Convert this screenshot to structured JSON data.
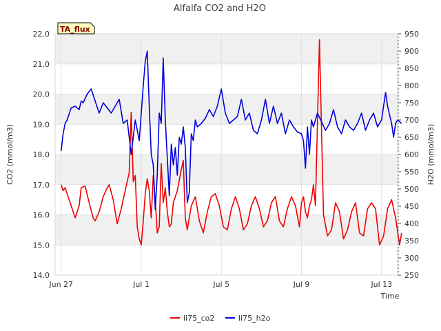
{
  "chart_data": {
    "type": "line",
    "title": "Alfalfa CO2 and H2O",
    "badge": "TA_flux",
    "xlabel": "Time",
    "ylabel_left": "CO2 (mmol/m3)",
    "ylabel_right": "H2O (mmol/m3)",
    "x_unit": "days since Jun 27",
    "xlim": [
      -0.3,
      16.8
    ],
    "ylim_left": [
      14.0,
      22.0
    ],
    "ylim_right": [
      250,
      950
    ],
    "x_ticks": [
      {
        "value": 0,
        "label": "Jun 27"
      },
      {
        "value": 4,
        "label": "Jul 1"
      },
      {
        "value": 8,
        "label": "Jul 5"
      },
      {
        "value": 12,
        "label": "Jul 9"
      },
      {
        "value": 16,
        "label": "Jul 13"
      }
    ],
    "y_ticks_left": [
      "14.0",
      "15.0",
      "16.0",
      "17.0",
      "18.0",
      "19.0",
      "20.0",
      "21.0",
      "22.0"
    ],
    "y_ticks_right": [
      "250",
      "300",
      "350",
      "400",
      "450",
      "500",
      "550",
      "600",
      "650",
      "700",
      "750",
      "800",
      "850",
      "900",
      "950"
    ],
    "grid": true,
    "legend_position": "bottom-center",
    "colors": {
      "li75_co2": "#ee0000",
      "li75_h2o": "#0000dd",
      "band": "#f0f0f0",
      "badge_bg": "#ffffc0"
    },
    "series": [
      {
        "name": "li75_co2",
        "axis": "left",
        "x": [
          0.0,
          0.1,
          0.2,
          0.3,
          0.5,
          0.7,
          0.9,
          1.0,
          1.2,
          1.4,
          1.6,
          1.7,
          1.9,
          2.1,
          2.3,
          2.4,
          2.6,
          2.8,
          3.0,
          3.2,
          3.4,
          3.5,
          3.6,
          3.7,
          3.8,
          3.9,
          4.0,
          4.1,
          4.2,
          4.3,
          4.4,
          4.5,
          4.6,
          4.7,
          4.8,
          4.9,
          5.0,
          5.1,
          5.2,
          5.3,
          5.4,
          5.5,
          5.6,
          5.8,
          6.0,
          6.1,
          6.2,
          6.3,
          6.5,
          6.7,
          6.9,
          7.1,
          7.3,
          7.5,
          7.7,
          7.9,
          8.1,
          8.3,
          8.5,
          8.7,
          8.9,
          9.1,
          9.3,
          9.5,
          9.7,
          9.9,
          10.1,
          10.3,
          10.5,
          10.7,
          10.9,
          11.1,
          11.3,
          11.5,
          11.7,
          11.9,
          12.0,
          12.1,
          12.2,
          12.3,
          12.4,
          12.5,
          12.6,
          12.7,
          12.9,
          13.1,
          13.3,
          13.5,
          13.7,
          13.9,
          14.1,
          14.3,
          14.5,
          14.7,
          14.9,
          15.1,
          15.3,
          15.5,
          15.7,
          15.9,
          16.1,
          16.3,
          16.5,
          16.7,
          16.9,
          17.0
        ],
        "values": [
          17.0,
          16.8,
          16.9,
          16.7,
          16.3,
          15.9,
          16.3,
          16.9,
          16.95,
          16.4,
          15.9,
          15.8,
          16.1,
          16.6,
          16.9,
          17.0,
          16.5,
          15.7,
          16.2,
          16.8,
          17.4,
          19.4,
          17.1,
          17.3,
          15.6,
          15.2,
          15.0,
          15.8,
          16.7,
          17.2,
          16.8,
          15.9,
          17.3,
          16.5,
          15.4,
          15.6,
          17.7,
          16.4,
          16.9,
          16.1,
          15.6,
          15.7,
          16.4,
          16.8,
          17.5,
          17.8,
          15.9,
          15.5,
          16.3,
          16.6,
          15.8,
          15.4,
          16.1,
          16.6,
          16.7,
          16.3,
          15.6,
          15.5,
          16.2,
          16.6,
          16.2,
          15.5,
          15.7,
          16.3,
          16.6,
          16.2,
          15.6,
          15.8,
          16.4,
          16.6,
          15.8,
          15.6,
          16.2,
          16.6,
          16.3,
          15.6,
          16.4,
          16.6,
          16.1,
          15.9,
          16.3,
          16.5,
          17.0,
          16.3,
          21.8,
          16.0,
          15.3,
          15.5,
          16.4,
          16.1,
          15.2,
          15.5,
          16.1,
          16.4,
          15.4,
          15.3,
          16.2,
          16.4,
          16.2,
          15.0,
          15.3,
          16.2,
          16.5,
          15.9,
          15.0,
          15.4
        ]
      },
      {
        "name": "li75_h2o",
        "axis": "right",
        "x": [
          0.0,
          0.1,
          0.2,
          0.3,
          0.5,
          0.7,
          0.9,
          1.0,
          1.1,
          1.3,
          1.5,
          1.7,
          1.9,
          2.1,
          2.3,
          2.5,
          2.7,
          2.9,
          3.1,
          3.3,
          3.5,
          3.7,
          3.9,
          4.0,
          4.1,
          4.2,
          4.3,
          4.4,
          4.5,
          4.6,
          4.7,
          4.8,
          4.9,
          5.0,
          5.1,
          5.2,
          5.3,
          5.4,
          5.5,
          5.6,
          5.7,
          5.8,
          5.9,
          6.0,
          6.1,
          6.2,
          6.3,
          6.4,
          6.5,
          6.6,
          6.7,
          6.8,
          7.0,
          7.2,
          7.4,
          7.6,
          7.8,
          8.0,
          8.2,
          8.4,
          8.6,
          8.8,
          9.0,
          9.2,
          9.4,
          9.6,
          9.8,
          10.0,
          10.2,
          10.4,
          10.6,
          10.8,
          11.0,
          11.2,
          11.4,
          11.6,
          11.8,
          12.0,
          12.1,
          12.2,
          12.3,
          12.4,
          12.5,
          12.6,
          12.8,
          13.0,
          13.2,
          13.4,
          13.6,
          13.8,
          14.0,
          14.2,
          14.4,
          14.6,
          14.8,
          15.0,
          15.2,
          15.4,
          15.6,
          15.8,
          16.0,
          16.2,
          16.3,
          16.5,
          16.6,
          16.7,
          16.8,
          17.0
        ],
        "values": [
          610,
          660,
          690,
          700,
          735,
          740,
          730,
          755,
          750,
          775,
          790,
          755,
          720,
          750,
          735,
          720,
          740,
          760,
          690,
          700,
          600,
          700,
          640,
          720,
          800,
          870,
          900,
          740,
          600,
          570,
          440,
          540,
          720,
          690,
          880,
          700,
          590,
          480,
          630,
          570,
          620,
          540,
          650,
          630,
          680,
          620,
          460,
          490,
          660,
          640,
          700,
          680,
          690,
          705,
          730,
          710,
          740,
          790,
          720,
          690,
          700,
          710,
          760,
          700,
          720,
          670,
          660,
          700,
          760,
          690,
          740,
          690,
          720,
          660,
          700,
          680,
          665,
          660,
          640,
          560,
          680,
          600,
          700,
          680,
          720,
          695,
          670,
          690,
          730,
          680,
          660,
          700,
          680,
          670,
          690,
          720,
          670,
          700,
          720,
          680,
          700,
          780,
          740,
          690,
          650,
          690,
          700,
          690
        ]
      }
    ]
  }
}
